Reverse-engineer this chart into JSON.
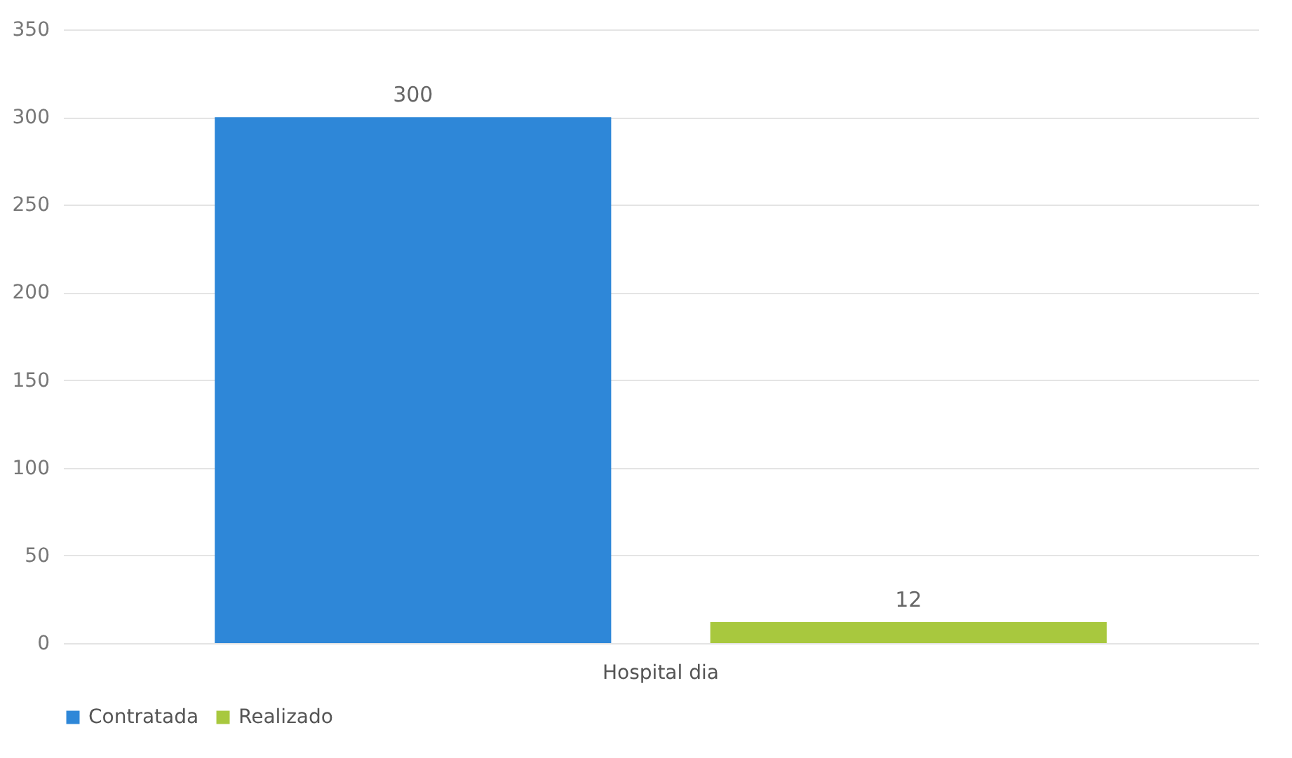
{
  "chart_data": {
    "type": "bar",
    "categories": [
      "Hospital dia"
    ],
    "series": [
      {
        "name": "Contratada",
        "color": "#2e87d8",
        "values": [
          300
        ]
      },
      {
        "name": "Realizado",
        "color": "#a8c83e",
        "values": [
          12
        ]
      }
    ],
    "ylim": [
      0,
      350
    ],
    "yticks": [
      0,
      50,
      100,
      150,
      200,
      250,
      300,
      350
    ],
    "grid": "y",
    "legend": "bottom",
    "data_labels": true
  }
}
